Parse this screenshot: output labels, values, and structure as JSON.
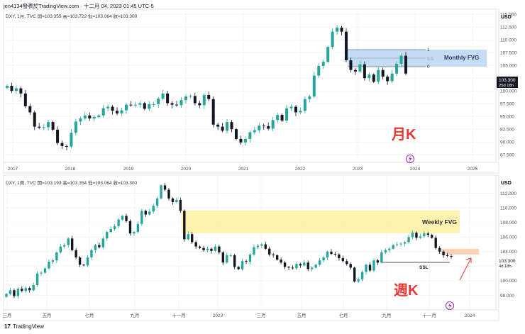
{
  "header": {
    "text": "jen4134發表於TradingView.com · 十二月 04, 2023 01:45 UTC-5"
  },
  "footer": {
    "logo": "17",
    "label": "TradingView"
  },
  "colors": {
    "up": "#26a69a",
    "down": "#131722",
    "accent": "#e53935",
    "grid": "#eef0f3"
  },
  "chart_data": [
    {
      "type": "candlestick",
      "ohlc_label": "DXY, 1月, TVC  開=103.355  高=103.722  低=103.064  收=103.300",
      "y_axis_title": "USD",
      "ylim": [
        86,
        116
      ],
      "yticks": [
        "115.000",
        "112.500",
        "110.000",
        "107.500",
        "105.000",
        "102.500",
        "100.000",
        "97.500",
        "95.000",
        "92.500",
        "90.000",
        "87.500"
      ],
      "xticks": [
        "2017",
        "2018",
        "2019",
        "2020",
        "2021",
        "2022",
        "2023",
        "2024",
        "2025"
      ],
      "current_price": "103.300",
      "countdown": "25d 18h",
      "series": [
        {
          "name": "DXY",
          "closes": [
            101,
            100,
            100.5,
            99.5,
            97,
            95.8,
            93,
            92.8,
            92.9,
            93.9,
            92.4,
            89.8,
            89.2,
            89.1,
            91.8,
            94,
            94.6,
            95.2,
            94.6,
            94.9,
            95.2,
            96.6,
            96.9,
            96.1,
            95.6,
            96.2,
            97.3,
            97.2,
            97.3,
            97.6,
            96.5,
            97.4,
            97.4,
            98.5,
            99.5,
            97.6,
            97.3,
            97.2,
            98.2,
            98.9,
            99.0,
            97.6,
            97.2,
            99.2,
            98.4,
            93.4,
            93,
            92.2,
            93.9,
            92.5,
            90.6,
            89.9,
            90.6,
            91.9,
            92.3,
            93.2,
            93.1,
            92.6,
            94.3,
            95.3,
            94.2,
            96.6,
            96.9,
            95.8,
            96.1,
            98.4,
            98.9,
            103.0,
            104.9,
            105.7,
            108.6,
            111.6,
            112.4,
            111.6,
            106.0,
            104.1,
            103.8,
            105.2,
            102.5,
            103.2,
            101.8,
            104.1,
            102.8,
            101.9,
            103.4,
            105.3,
            106.9,
            103.4
          ]
        }
      ],
      "annotations": [
        "Monthly FVG",
        "1",
        "0.5",
        "0",
        "月K"
      ]
    },
    {
      "type": "candlestick",
      "ohlc_label": "DXY, 1周, TVC  開=103.193  高=103.354  低=103.064  收=103.300",
      "y_axis_title": "USD",
      "ylim": [
        96,
        114.5
      ],
      "yticks": [
        "112.000",
        "110.000",
        "108.000",
        "106.000",
        "104.000",
        "102.000",
        "100.000",
        "98.000"
      ],
      "xticks": [
        "三月",
        "五月",
        "七月",
        "九月",
        "十一月",
        "2023",
        "三月",
        "五月",
        "七月",
        "九月",
        "十一月",
        "2024"
      ],
      "current_price": "103.300",
      "countdown": "4d 18h",
      "series": [
        {
          "name": "DXY",
          "closes": [
            98.2,
            98.7,
            97.9,
            98.9,
            98.6,
            99.0,
            98.7,
            99.4,
            101.0,
            101.1,
            101.7,
            102.6,
            102.8,
            103.9,
            104.7,
            104.9,
            105.8,
            104.2,
            103.2,
            102.2,
            102.1,
            103.2,
            104.2,
            104.9,
            104.6,
            105.8,
            106.7,
            107.1,
            107.5,
            108.4,
            108.9,
            108.2,
            106.5,
            106.7,
            107.8,
            109.6,
            109.1,
            109.5,
            110.3,
            111.3,
            113.1,
            112.5,
            111.3,
            110.8,
            111.1,
            109.6,
            105.7,
            106.4,
            105.3,
            104.7,
            104.5,
            104.2,
            104.4,
            104.1,
            104.7,
            103.9,
            102.5,
            103.5,
            103.5,
            101.9,
            101.6,
            102.7,
            102.6,
            103.6,
            104.6,
            104.8,
            105.0,
            104.4,
            103.6,
            103.5,
            102.9,
            102.5,
            101.9,
            101.8,
            101.7,
            102.3,
            102.1,
            102.5,
            101.6,
            101.8,
            102.2,
            102.8,
            103.2,
            104.0,
            103.7,
            103.6,
            103.1,
            102.7,
            102.3,
            101.8,
            99.9,
            100.2,
            101.2,
            102.2,
            101.4,
            102.8,
            102.5,
            103.9,
            104.2,
            104.4,
            104.9,
            105.0,
            105.1,
            105.3,
            106.0,
            106.6,
            105.9,
            106.1,
            106.5,
            106.3,
            105.9,
            104.5,
            104.0,
            103.5,
            103.4,
            103.3
          ]
        }
      ],
      "annotations": [
        "Weekly FVG",
        "SSL",
        "週K"
      ]
    }
  ]
}
